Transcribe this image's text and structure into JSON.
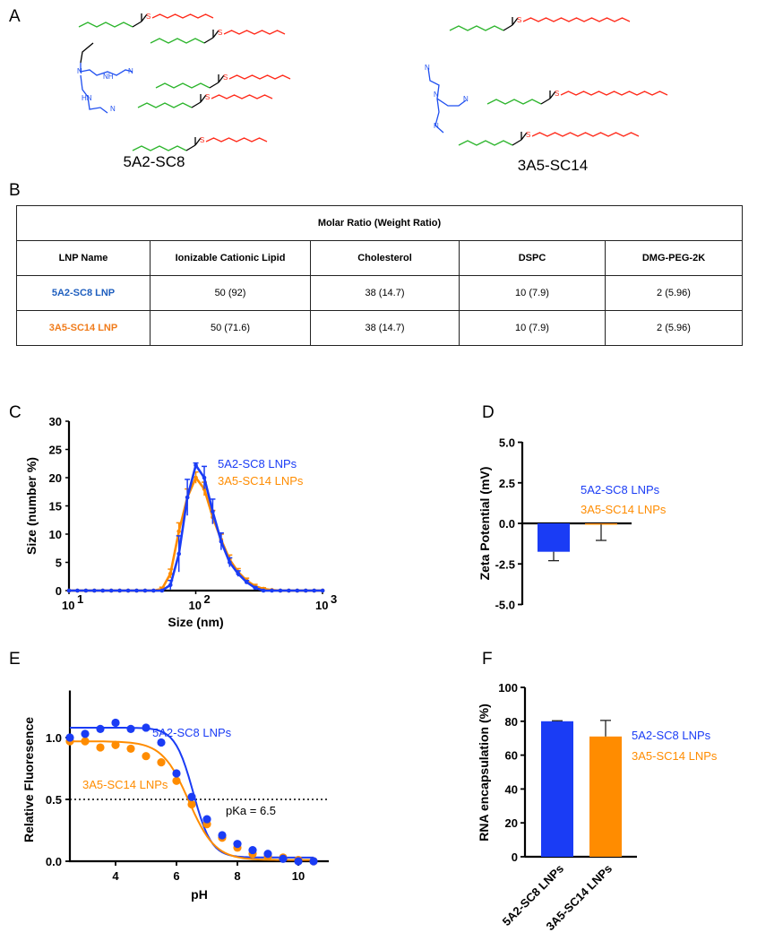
{
  "panels": {
    "A": "A",
    "B": "B",
    "C": "C",
    "D": "D",
    "E": "E",
    "F": "F"
  },
  "structures": [
    {
      "name": "5A2-SC8"
    },
    {
      "name": "3A5-SC14"
    }
  ],
  "table": {
    "title": "Molar Ratio (Weight Ratio)",
    "headers": [
      "LNP Name",
      "Ionizable  Cationic Lipid",
      "Cholesterol",
      "DSPC",
      "DMG-PEG-2K"
    ],
    "rows": [
      {
        "name": "5A2-SC8 LNP",
        "color": "#1f5fbf",
        "cells": [
          "50 (92)",
          "38 (14.7)",
          "10 (7.9)",
          "2 (5.96)"
        ]
      },
      {
        "name": "3A5-SC14  LNP",
        "color": "#f07c1c",
        "cells": [
          "50 (71.6)",
          "38 (14.7)",
          "10 (7.9)",
          "2 (5.96)"
        ]
      }
    ]
  },
  "colors": {
    "blue": "#1a3cf5",
    "orange": "#ff8c00",
    "red": "#ff2a1a",
    "green": "#2db52d",
    "navy": "#1f4ff0"
  },
  "chart_data": [
    {
      "panel": "C",
      "type": "line",
      "xscale": "log",
      "xlabel": "Size (nm)",
      "ylabel": "Size (number %)",
      "xlim": [
        10,
        1000
      ],
      "ylim": [
        0,
        30
      ],
      "xticks": [
        {
          "base": "10",
          "exp": "1"
        },
        {
          "base": "10",
          "exp": "2"
        },
        {
          "base": "10",
          "exp": "3"
        }
      ],
      "yticks": [
        0,
        5,
        10,
        15,
        20,
        25,
        30
      ],
      "x_log10_step": 0.0667,
      "series": [
        {
          "name": "5A2-SC8 LNPs",
          "color": "#1a3cf5",
          "values": [
            0,
            0,
            0,
            0,
            0,
            0,
            0,
            0,
            0,
            0,
            0,
            0,
            1.0,
            6.5,
            16.5,
            22.2,
            20,
            14,
            8.7,
            5,
            3,
            1.5,
            0.5,
            0,
            0,
            0,
            0,
            0,
            0,
            0,
            0
          ],
          "errors": [
            0,
            0,
            0,
            0,
            0,
            0,
            0,
            0,
            0,
            0,
            0,
            0,
            0.8,
            3.2,
            3.2,
            0.4,
            2.0,
            2.2,
            1.5,
            0.8,
            0.5,
            0.3,
            0.2,
            0,
            0,
            0,
            0,
            0,
            0,
            0,
            0
          ]
        },
        {
          "name": "3A5-SC14 LNPs",
          "color": "#ff8c00",
          "values": [
            0,
            0,
            0,
            0,
            0,
            0,
            0,
            0,
            0,
            0,
            0,
            0.3,
            3,
            10.5,
            16.5,
            20,
            18,
            13,
            9,
            5.5,
            3.3,
            1.8,
            0.8,
            0.3,
            0.1,
            0,
            0,
            0,
            0,
            0,
            0
          ],
          "errors": [
            0,
            0,
            0,
            0,
            0,
            0,
            0,
            0,
            0,
            0,
            0,
            0.3,
            0.8,
            1.5,
            1.5,
            1.0,
            1.2,
            1.2,
            1.0,
            0.8,
            0.6,
            0.4,
            0.3,
            0.2,
            0,
            0,
            0,
            0,
            0,
            0,
            0
          ]
        }
      ]
    },
    {
      "panel": "D",
      "type": "bar",
      "ylabel": "Zeta Potential (mV)",
      "ylim": [
        -5,
        5
      ],
      "yticks": [
        "5.0",
        "2.5",
        "0.0",
        "-2.5",
        "-5.0"
      ],
      "categories": [
        "5A2-SC8 LNPs",
        "3A5-SC14 LNPs"
      ],
      "values": [
        -1.75,
        -0.05
      ],
      "errors": [
        0.55,
        1.0
      ],
      "colors": [
        "#1a3cf5",
        "#ff8c00"
      ]
    },
    {
      "panel": "E",
      "type": "scatter",
      "xlabel": "pH",
      "ylabel": "Relative Fluoresence",
      "xlim": [
        2.5,
        11
      ],
      "ylim": [
        0,
        1.4
      ],
      "xticks": [
        4,
        6,
        8,
        10
      ],
      "yticks": [
        "0.0",
        "0.5",
        "1.0"
      ],
      "reference_line": {
        "y": 0.5,
        "label": "pKa = 6.5"
      },
      "x": [
        2.5,
        3,
        3.5,
        4,
        4.5,
        5,
        5.5,
        6,
        6.5,
        7,
        7.5,
        8,
        8.5,
        9,
        9.5,
        10,
        10.5
      ],
      "series": [
        {
          "name": "5A2-SC8 LNPs",
          "color": "#1a3cf5",
          "values": [
            1.0,
            1.03,
            1.07,
            1.12,
            1.07,
            1.08,
            0.96,
            0.71,
            0.52,
            0.34,
            0.21,
            0.14,
            0.09,
            0.06,
            0.02,
            0.0,
            0.0
          ],
          "fit": {
            "top": 1.08,
            "bottom": 0.03,
            "pKa": 6.55,
            "hill": 1.45
          }
        },
        {
          "name": "3A5-SC14 LNPs",
          "color": "#ff8c00",
          "values": [
            0.97,
            0.97,
            0.92,
            0.94,
            0.91,
            0.85,
            0.8,
            0.65,
            0.46,
            0.3,
            0.19,
            0.11,
            0.06,
            0.04,
            0.03,
            0.01,
            0.0
          ],
          "fit": {
            "top": 0.97,
            "bottom": 0.01,
            "pKa": 6.4,
            "hill": 1.0
          }
        }
      ]
    },
    {
      "panel": "F",
      "type": "bar",
      "ylabel": "RNA encapsulation (%)",
      "ylim": [
        0,
        100
      ],
      "yticks": [
        0,
        20,
        40,
        60,
        80,
        100
      ],
      "categories": [
        "5A2-SC8 LNPs",
        "3A5-SC14 LNPs"
      ],
      "values": [
        80,
        71
      ],
      "errors": [
        0.3,
        9.5
      ],
      "colors": [
        "#1a3cf5",
        "#ff8c00"
      ]
    }
  ]
}
